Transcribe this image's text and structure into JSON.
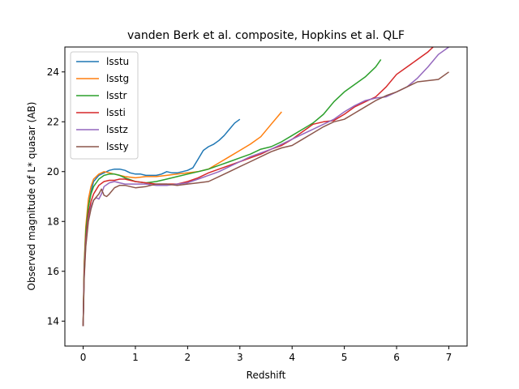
{
  "chart_data": {
    "type": "line",
    "title": "vanden Berk et al. composite, Hopkins et al. QLF",
    "xlabel": "Redshift",
    "ylabel": "Observed magnitude of L* quasar (AB)",
    "xlim": [
      -0.35,
      7.35
    ],
    "ylim": [
      13.0,
      25.0
    ],
    "xticks": [
      0,
      1,
      2,
      3,
      4,
      5,
      6,
      7
    ],
    "yticks": [
      14,
      16,
      18,
      20,
      22,
      24
    ],
    "grid": false,
    "legend_position": "top-left",
    "series": [
      {
        "name": "lsstu",
        "color": "#1f77b4",
        "points": [
          [
            0.0,
            13.8
          ],
          [
            0.02,
            16.0
          ],
          [
            0.05,
            17.5
          ],
          [
            0.1,
            18.6
          ],
          [
            0.15,
            19.2
          ],
          [
            0.2,
            19.6
          ],
          [
            0.3,
            19.85
          ],
          [
            0.4,
            19.95
          ],
          [
            0.5,
            20.05
          ],
          [
            0.6,
            20.1
          ],
          [
            0.7,
            20.1
          ],
          [
            0.8,
            20.05
          ],
          [
            0.9,
            19.95
          ],
          [
            1.0,
            19.9
          ],
          [
            1.1,
            19.9
          ],
          [
            1.2,
            19.85
          ],
          [
            1.3,
            19.85
          ],
          [
            1.4,
            19.85
          ],
          [
            1.5,
            19.9
          ],
          [
            1.6,
            20.0
          ],
          [
            1.7,
            19.95
          ],
          [
            1.8,
            19.95
          ],
          [
            1.9,
            20.0
          ],
          [
            2.0,
            20.05
          ],
          [
            2.1,
            20.15
          ],
          [
            2.2,
            20.5
          ],
          [
            2.3,
            20.85
          ],
          [
            2.4,
            21.0
          ],
          [
            2.5,
            21.1
          ],
          [
            2.6,
            21.25
          ],
          [
            2.7,
            21.45
          ],
          [
            2.8,
            21.7
          ],
          [
            2.9,
            21.95
          ],
          [
            3.0,
            22.1
          ]
        ]
      },
      {
        "name": "lsstg",
        "color": "#ff7f0e",
        "points": [
          [
            0.0,
            13.8
          ],
          [
            0.02,
            16.3
          ],
          [
            0.05,
            17.8
          ],
          [
            0.1,
            18.9
          ],
          [
            0.15,
            19.4
          ],
          [
            0.2,
            19.7
          ],
          [
            0.3,
            19.9
          ],
          [
            0.4,
            20.0
          ],
          [
            0.5,
            19.95
          ],
          [
            0.6,
            19.9
          ],
          [
            0.7,
            19.85
          ],
          [
            0.8,
            19.8
          ],
          [
            1.0,
            19.75
          ],
          [
            1.2,
            19.8
          ],
          [
            1.4,
            19.8
          ],
          [
            1.6,
            19.85
          ],
          [
            1.8,
            19.9
          ],
          [
            2.0,
            19.95
          ],
          [
            2.2,
            20.0
          ],
          [
            2.4,
            20.1
          ],
          [
            2.6,
            20.35
          ],
          [
            2.8,
            20.6
          ],
          [
            3.0,
            20.85
          ],
          [
            3.2,
            21.1
          ],
          [
            3.4,
            21.4
          ],
          [
            3.6,
            21.9
          ],
          [
            3.8,
            22.4
          ]
        ]
      },
      {
        "name": "lsstr",
        "color": "#2ca02c",
        "points": [
          [
            0.0,
            13.8
          ],
          [
            0.02,
            16.2
          ],
          [
            0.05,
            17.6
          ],
          [
            0.1,
            18.6
          ],
          [
            0.15,
            19.1
          ],
          [
            0.2,
            19.4
          ],
          [
            0.3,
            19.7
          ],
          [
            0.4,
            19.85
          ],
          [
            0.5,
            19.9
          ],
          [
            0.6,
            19.9
          ],
          [
            0.7,
            19.85
          ],
          [
            0.8,
            19.75
          ],
          [
            1.0,
            19.6
          ],
          [
            1.2,
            19.55
          ],
          [
            1.4,
            19.6
          ],
          [
            1.6,
            19.7
          ],
          [
            1.8,
            19.8
          ],
          [
            2.0,
            19.9
          ],
          [
            2.2,
            20.0
          ],
          [
            2.4,
            20.1
          ],
          [
            2.6,
            20.25
          ],
          [
            2.8,
            20.4
          ],
          [
            3.0,
            20.55
          ],
          [
            3.2,
            20.7
          ],
          [
            3.4,
            20.9
          ],
          [
            3.6,
            21.0
          ],
          [
            3.8,
            21.2
          ],
          [
            4.0,
            21.45
          ],
          [
            4.2,
            21.7
          ],
          [
            4.4,
            21.95
          ],
          [
            4.6,
            22.3
          ],
          [
            4.8,
            22.8
          ],
          [
            5.0,
            23.2
          ],
          [
            5.2,
            23.5
          ],
          [
            5.4,
            23.8
          ],
          [
            5.6,
            24.2
          ],
          [
            5.7,
            24.5
          ]
        ]
      },
      {
        "name": "lssti",
        "color": "#d62728",
        "points": [
          [
            0.0,
            13.8
          ],
          [
            0.02,
            16.0
          ],
          [
            0.05,
            17.3
          ],
          [
            0.1,
            18.3
          ],
          [
            0.15,
            18.8
          ],
          [
            0.2,
            19.1
          ],
          [
            0.3,
            19.45
          ],
          [
            0.4,
            19.6
          ],
          [
            0.5,
            19.65
          ],
          [
            0.6,
            19.65
          ],
          [
            0.7,
            19.7
          ],
          [
            0.8,
            19.7
          ],
          [
            1.0,
            19.6
          ],
          [
            1.2,
            19.55
          ],
          [
            1.4,
            19.5
          ],
          [
            1.6,
            19.5
          ],
          [
            1.8,
            19.5
          ],
          [
            2.0,
            19.6
          ],
          [
            2.2,
            19.75
          ],
          [
            2.4,
            19.95
          ],
          [
            2.6,
            20.1
          ],
          [
            2.8,
            20.25
          ],
          [
            3.0,
            20.4
          ],
          [
            3.2,
            20.55
          ],
          [
            3.4,
            20.7
          ],
          [
            3.6,
            20.9
          ],
          [
            3.8,
            21.05
          ],
          [
            4.0,
            21.3
          ],
          [
            4.2,
            21.6
          ],
          [
            4.4,
            21.9
          ],
          [
            4.6,
            22.0
          ],
          [
            4.8,
            22.05
          ],
          [
            5.0,
            22.3
          ],
          [
            5.2,
            22.6
          ],
          [
            5.4,
            22.8
          ],
          [
            5.6,
            23.0
          ],
          [
            5.8,
            23.4
          ],
          [
            6.0,
            23.9
          ],
          [
            6.2,
            24.2
          ],
          [
            6.4,
            24.5
          ],
          [
            6.6,
            24.8
          ],
          [
            6.7,
            25.0
          ]
        ]
      },
      {
        "name": "lsstz",
        "color": "#9467bd",
        "points": [
          [
            0.0,
            13.8
          ],
          [
            0.02,
            15.8
          ],
          [
            0.05,
            17.1
          ],
          [
            0.1,
            18.1
          ],
          [
            0.15,
            18.6
          ],
          [
            0.2,
            18.85
          ],
          [
            0.25,
            18.95
          ],
          [
            0.3,
            18.9
          ],
          [
            0.35,
            19.1
          ],
          [
            0.4,
            19.4
          ],
          [
            0.5,
            19.55
          ],
          [
            0.6,
            19.6
          ],
          [
            0.7,
            19.55
          ],
          [
            0.8,
            19.5
          ],
          [
            1.0,
            19.5
          ],
          [
            1.2,
            19.5
          ],
          [
            1.4,
            19.45
          ],
          [
            1.6,
            19.45
          ],
          [
            1.8,
            19.5
          ],
          [
            2.0,
            19.55
          ],
          [
            2.2,
            19.7
          ],
          [
            2.4,
            19.85
          ],
          [
            2.6,
            20.0
          ],
          [
            2.8,
            20.2
          ],
          [
            3.0,
            20.4
          ],
          [
            3.2,
            20.6
          ],
          [
            3.4,
            20.75
          ],
          [
            3.6,
            20.9
          ],
          [
            3.8,
            21.1
          ],
          [
            4.0,
            21.3
          ],
          [
            4.2,
            21.5
          ],
          [
            4.4,
            21.7
          ],
          [
            4.6,
            21.9
          ],
          [
            4.8,
            22.1
          ],
          [
            5.0,
            22.4
          ],
          [
            5.2,
            22.65
          ],
          [
            5.4,
            22.85
          ],
          [
            5.6,
            22.95
          ],
          [
            5.8,
            23.0
          ],
          [
            6.0,
            23.2
          ],
          [
            6.2,
            23.4
          ],
          [
            6.4,
            23.75
          ],
          [
            6.6,
            24.2
          ],
          [
            6.8,
            24.7
          ],
          [
            7.0,
            25.0
          ]
        ]
      },
      {
        "name": "lssty",
        "color": "#8c564b",
        "points": [
          [
            0.0,
            13.8
          ],
          [
            0.02,
            15.7
          ],
          [
            0.05,
            17.0
          ],
          [
            0.1,
            18.0
          ],
          [
            0.15,
            18.5
          ],
          [
            0.2,
            18.85
          ],
          [
            0.3,
            19.1
          ],
          [
            0.35,
            19.3
          ],
          [
            0.4,
            19.05
          ],
          [
            0.45,
            19.0
          ],
          [
            0.5,
            19.1
          ],
          [
            0.6,
            19.35
          ],
          [
            0.7,
            19.45
          ],
          [
            0.8,
            19.45
          ],
          [
            0.9,
            19.4
          ],
          [
            1.0,
            19.35
          ],
          [
            1.2,
            19.4
          ],
          [
            1.4,
            19.5
          ],
          [
            1.6,
            19.5
          ],
          [
            1.8,
            19.45
          ],
          [
            2.0,
            19.5
          ],
          [
            2.2,
            19.55
          ],
          [
            2.4,
            19.6
          ],
          [
            2.6,
            19.8
          ],
          [
            2.8,
            20.0
          ],
          [
            3.0,
            20.2
          ],
          [
            3.2,
            20.4
          ],
          [
            3.4,
            20.6
          ],
          [
            3.6,
            20.8
          ],
          [
            3.8,
            20.95
          ],
          [
            4.0,
            21.05
          ],
          [
            4.2,
            21.3
          ],
          [
            4.4,
            21.55
          ],
          [
            4.6,
            21.8
          ],
          [
            4.8,
            22.0
          ],
          [
            5.0,
            22.1
          ],
          [
            5.2,
            22.35
          ],
          [
            5.4,
            22.6
          ],
          [
            5.6,
            22.85
          ],
          [
            5.8,
            23.05
          ],
          [
            6.0,
            23.2
          ],
          [
            6.2,
            23.4
          ],
          [
            6.4,
            23.6
          ],
          [
            6.6,
            23.65
          ],
          [
            6.8,
            23.7
          ],
          [
            7.0,
            24.0
          ]
        ]
      }
    ]
  }
}
